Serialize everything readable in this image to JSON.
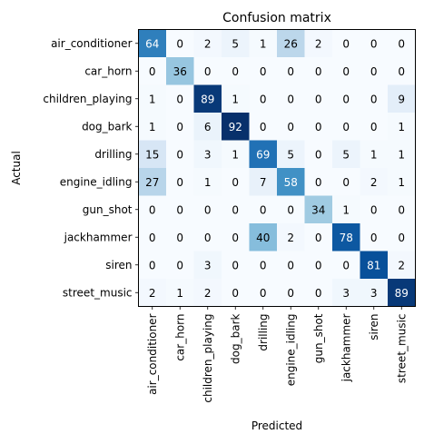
{
  "chart_data": {
    "type": "heatmap",
    "title": "Confusion matrix",
    "xlabel": "Predicted",
    "ylabel": "Actual",
    "labels": [
      "air_conditioner",
      "car_horn",
      "children_playing",
      "dog_bark",
      "drilling",
      "engine_idling",
      "gun_shot",
      "jackhammer",
      "siren",
      "street_music"
    ],
    "matrix": [
      [
        64,
        0,
        2,
        5,
        1,
        26,
        2,
        0,
        0,
        0
      ],
      [
        0,
        36,
        0,
        0,
        0,
        0,
        0,
        0,
        0,
        0
      ],
      [
        1,
        0,
        89,
        1,
        0,
        0,
        0,
        0,
        0,
        9
      ],
      [
        1,
        0,
        6,
        92,
        0,
        0,
        0,
        0,
        0,
        1
      ],
      [
        15,
        0,
        3,
        1,
        69,
        5,
        0,
        5,
        1,
        1
      ],
      [
        27,
        0,
        1,
        0,
        7,
        58,
        0,
        0,
        2,
        1
      ],
      [
        0,
        0,
        0,
        0,
        0,
        0,
        34,
        1,
        0,
        0
      ],
      [
        0,
        0,
        0,
        0,
        40,
        2,
        0,
        78,
        0,
        0
      ],
      [
        0,
        0,
        3,
        0,
        0,
        0,
        0,
        0,
        81,
        2
      ],
      [
        2,
        1,
        2,
        0,
        0,
        0,
        0,
        3,
        3,
        89
      ]
    ],
    "value_range": [
      0,
      92
    ],
    "colormap": "Blues",
    "grid": false
  }
}
